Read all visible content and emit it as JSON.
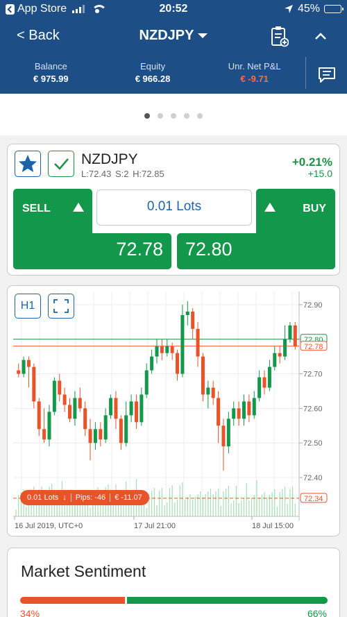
{
  "status_bar": {
    "carrier": "App Store",
    "time": "20:52",
    "battery": "45%",
    "battery_level": 0.45
  },
  "nav": {
    "back_label": "< Back",
    "title": "NZDJPY"
  },
  "account": {
    "balance_label": "Balance",
    "balance_value": "€ 975.99",
    "equity_label": "Equity",
    "equity_value": "€ 966.28",
    "pnl_label": "Unr. Net P&L",
    "pnl_value": "€ -9.71"
  },
  "pager": {
    "count": 5,
    "active": 0
  },
  "instrument": {
    "symbol": "NZDJPY",
    "low": "L:72.43",
    "spread": "S:2",
    "high": "H:72.85",
    "change_pct": "+0.21%",
    "change_abs": "+15.0"
  },
  "trade": {
    "sell_label": "SELL",
    "buy_label": "BUY",
    "lots": "0.01 Lots",
    "sell_price": "72.78",
    "buy_price": "72.80"
  },
  "chart": {
    "timeframe": "H1",
    "position": {
      "lots": "0.01 Lots",
      "pips": "Pips: -46",
      "pnl": "€ -11.07"
    }
  },
  "chart_data": {
    "type": "candlestick",
    "timeframe": "H1",
    "y_ticks": [
      72.9,
      72.8,
      72.7,
      72.6,
      72.5,
      72.4
    ],
    "y_tick_labels": [
      "72.90",
      "72.70",
      "72.60",
      "72.50",
      "72.40"
    ],
    "ylim": [
      72.34,
      72.92
    ],
    "x_labels": [
      "16 Jul 2019, UTC+0",
      "17 Jul 21:00",
      "18 Jul 15:00"
    ],
    "price_lines": [
      {
        "name": "buy",
        "value": 72.8,
        "label": "72.80",
        "color": "#1e9146"
      },
      {
        "name": "sell",
        "value": 72.78,
        "label": "72.78",
        "color": "#e9532a"
      },
      {
        "name": "entry",
        "value": 72.34,
        "label": "72.34",
        "color": "#e9532a"
      }
    ],
    "candles": [
      [
        72.71,
        72.7,
        72.73,
        72.69
      ],
      [
        72.7,
        72.74,
        72.75,
        72.69
      ],
      [
        72.74,
        72.72,
        72.75,
        72.66
      ],
      [
        72.72,
        72.62,
        72.73,
        72.6
      ],
      [
        72.62,
        72.54,
        72.63,
        72.52
      ],
      [
        72.54,
        72.51,
        72.6,
        72.5
      ],
      [
        72.51,
        72.59,
        72.61,
        72.49
      ],
      [
        72.59,
        72.68,
        72.69,
        72.58
      ],
      [
        72.68,
        72.64,
        72.7,
        72.62
      ],
      [
        72.64,
        72.61,
        72.66,
        72.59
      ],
      [
        72.61,
        72.57,
        72.63,
        72.56
      ],
      [
        72.57,
        72.63,
        72.65,
        72.55
      ],
      [
        72.63,
        72.6,
        72.66,
        72.59
      ],
      [
        72.6,
        72.54,
        72.62,
        72.52
      ],
      [
        72.54,
        72.5,
        72.57,
        72.45
      ],
      [
        72.5,
        72.54,
        72.56,
        72.48
      ],
      [
        72.54,
        72.51,
        72.56,
        72.49
      ],
      [
        72.51,
        72.58,
        72.6,
        72.5
      ],
      [
        72.58,
        72.63,
        72.64,
        72.57
      ],
      [
        72.63,
        72.57,
        72.65,
        72.54
      ],
      [
        72.57,
        72.5,
        72.58,
        72.48
      ],
      [
        72.5,
        72.58,
        72.62,
        72.49
      ],
      [
        72.58,
        72.62,
        72.64,
        72.56
      ],
      [
        72.62,
        72.56,
        72.64,
        72.54
      ],
      [
        72.56,
        72.64,
        72.66,
        72.55
      ],
      [
        72.64,
        72.71,
        72.73,
        72.63
      ],
      [
        72.71,
        72.75,
        72.77,
        72.7
      ],
      [
        72.75,
        72.78,
        72.8,
        72.73
      ],
      [
        72.78,
        72.76,
        72.8,
        72.74
      ],
      [
        72.76,
        72.78,
        72.8,
        72.75
      ],
      [
        72.78,
        72.76,
        72.79,
        72.74
      ],
      [
        72.76,
        72.7,
        72.77,
        72.68
      ],
      [
        72.7,
        72.87,
        72.9,
        72.69
      ],
      [
        72.87,
        72.88,
        72.91,
        72.84
      ],
      [
        72.88,
        72.83,
        72.89,
        72.8
      ],
      [
        72.83,
        72.75,
        72.85,
        72.72
      ],
      [
        72.75,
        72.64,
        72.76,
        72.62
      ],
      [
        72.64,
        72.66,
        72.68,
        72.6
      ],
      [
        72.66,
        72.63,
        72.68,
        72.61
      ],
      [
        72.63,
        72.55,
        72.65,
        72.5
      ],
      [
        72.55,
        72.49,
        72.57,
        72.42
      ],
      [
        72.49,
        72.57,
        72.59,
        72.47
      ],
      [
        72.57,
        72.6,
        72.62,
        72.55
      ],
      [
        72.6,
        72.57,
        72.62,
        72.55
      ],
      [
        72.57,
        72.62,
        72.64,
        72.55
      ],
      [
        72.62,
        72.58,
        72.64,
        72.56
      ],
      [
        72.58,
        72.63,
        72.65,
        72.57
      ],
      [
        72.63,
        72.69,
        72.71,
        72.62
      ],
      [
        72.69,
        72.66,
        72.71,
        72.64
      ],
      [
        72.66,
        72.72,
        72.74,
        72.65
      ],
      [
        72.72,
        72.76,
        72.78,
        72.71
      ],
      [
        72.76,
        72.75,
        72.78,
        72.73
      ],
      [
        72.75,
        72.8,
        72.84,
        72.74
      ],
      [
        72.8,
        72.84,
        72.85,
        72.79
      ],
      [
        72.84,
        72.78,
        72.85,
        72.77
      ]
    ]
  },
  "sentiment": {
    "title": "Market Sentiment",
    "sell_pct": "34%",
    "buy_pct": "66%",
    "sell_fraction": 0.34
  },
  "colors": {
    "header": "#1d4f86",
    "green": "#13974a",
    "red": "#e9532a",
    "blue": "#1d63a8"
  }
}
